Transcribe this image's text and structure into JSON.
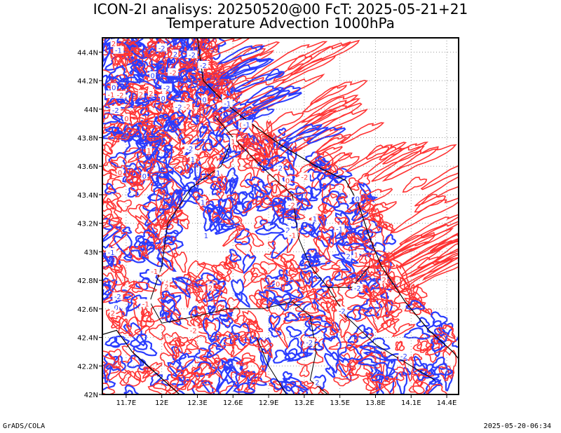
{
  "title_line_1": "ICON-2I analisys: 20250520@00 FcT: 2025-05-21+21",
  "title_line_2": "Temperature Advection 1000hPa",
  "footer_left": "GrADS/COLA",
  "footer_right": "2025-05-20-06:34",
  "colors": {
    "positive_advection": "#ff3333",
    "negative_advection": "#2a3cff",
    "coastline_border": "#000000",
    "grid": "#9a9a9a",
    "frame": "#000000",
    "label_box": "#ffffff"
  },
  "chart_data": {
    "type": "map-contour",
    "title": "Temperature Advection 1000hPa",
    "x_ticks": [
      "11.7E",
      "12E",
      "12.3E",
      "12.6E",
      "12.9E",
      "13.2E",
      "13.5E",
      "13.8E",
      "14.1E",
      "14.4E"
    ],
    "x_tick_values": [
      11.7,
      12.0,
      12.3,
      12.6,
      12.9,
      13.2,
      13.5,
      13.8,
      14.1,
      14.4
    ],
    "y_ticks": [
      "42N",
      "42.2N",
      "42.4N",
      "42.6N",
      "42.8N",
      "43N",
      "43.2N",
      "43.4N",
      "43.6N",
      "43.8N",
      "44N",
      "44.2N",
      "44.4N"
    ],
    "y_tick_values": [
      42.0,
      42.2,
      42.4,
      42.6,
      42.8,
      43.0,
      43.2,
      43.4,
      43.6,
      43.8,
      44.0,
      44.2,
      44.4
    ],
    "xlim": [
      11.5,
      14.5
    ],
    "ylim": [
      42.0,
      44.5
    ],
    "grid": true,
    "contour_labels": [
      "-1",
      "1",
      "0",
      "2",
      "-2"
    ]
  }
}
